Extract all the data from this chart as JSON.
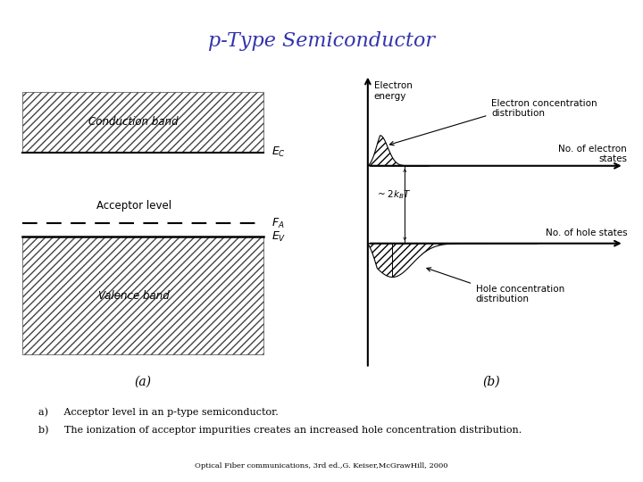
{
  "title": "p-Type Semiconductor",
  "title_color": "#3333aa",
  "title_fontsize": 16,
  "bg_color": "#ffffff",
  "caption_a": "a)     Acceptor level in an p-type semiconductor.",
  "caption_b": "b)     The ionization of acceptor impurities creates an increased hole concentration distribution.",
  "footer": "Optical Fiber communications, 3rd ed.,G. Keiser,McGrawHill, 2000",
  "label_Ec": "$E_C$",
  "label_Ev": "$E_V$",
  "label_Ea": "$F_A$",
  "label_conduction": "Conduction band",
  "label_valence": "Valence band",
  "label_acceptor": "Acceptor level",
  "label_a": "(a)",
  "label_b": "(b)",
  "label_electron_energy": "Electron\nenergy",
  "label_electron_conc": "Electron concentration\ndistribution",
  "label_no_electron": "No. of electron\nstates",
  "label_no_hole": "No. of hole states",
  "label_2kbt": "~ $2k_BT$",
  "label_hole_conc": "Hole concentration\ndistribution",
  "hatch_color": "#444444",
  "line_color": "#000000"
}
